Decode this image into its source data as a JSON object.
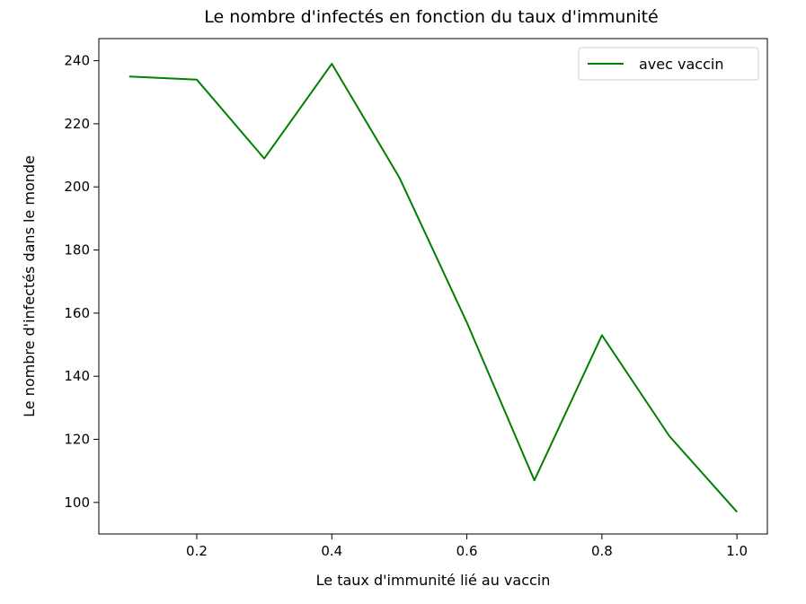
{
  "chart_data": {
    "type": "line",
    "title": "Le nombre d'infectés en fonction du taux d'immunité",
    "xlabel": "Le taux d'immunité lié au vaccin",
    "ylabel": "Le nombre d'infectés dans le monde",
    "xlim": [
      0.055,
      1.045
    ],
    "ylim": [
      90,
      247
    ],
    "xticks": [
      0.2,
      0.4,
      0.6,
      0.8,
      1.0
    ],
    "xtick_labels": [
      "0.2",
      "0.4",
      "0.6",
      "0.8",
      "1.0"
    ],
    "yticks": [
      100,
      120,
      140,
      160,
      180,
      200,
      220,
      240
    ],
    "ytick_labels": [
      "100",
      "120",
      "140",
      "160",
      "180",
      "200",
      "220",
      "240"
    ],
    "grid": false,
    "legend_position": "top-right",
    "series": [
      {
        "name": "avec vaccin",
        "color": "#008000",
        "x": [
          0.1,
          0.2,
          0.3,
          0.4,
          0.5,
          0.6,
          0.7,
          0.8,
          0.9,
          1.0
        ],
        "y": [
          235,
          234,
          209,
          239,
          203,
          157,
          107,
          153,
          121,
          97
        ]
      }
    ]
  }
}
